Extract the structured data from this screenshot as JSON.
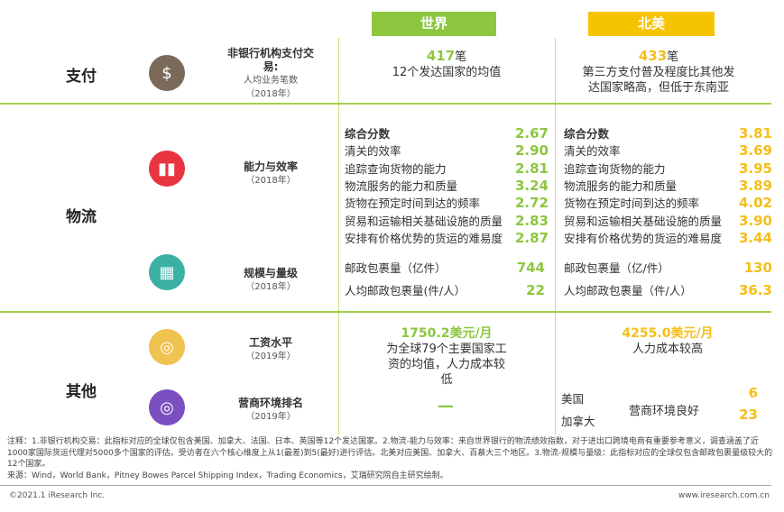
{
  "headers": {
    "world": "世界",
    "north_america": "北美"
  },
  "colors": {
    "world": "#8dc63f",
    "north_america": "#f5be1a",
    "line": "#a6cf4a"
  },
  "payment": {
    "category": "支付",
    "icon": "money-bag-icon",
    "title": "非银行机构支付交易:",
    "subtitle": "人均业务笔数",
    "year": "（2018年）",
    "world": {
      "value": "417",
      "unit": "笔",
      "desc": "12个发达国家的均值"
    },
    "na": {
      "value": "433",
      "unit": "笔",
      "desc": "第三方支付普及程度比其他发达国家略高，但低于东南亚"
    }
  },
  "logistics": {
    "category": "物流",
    "efficiency": {
      "icon": "bar-chart-icon",
      "title": "能力与效率",
      "year": "（2018年）",
      "labels": [
        "综合分数",
        "清关的效率",
        "追踪查询货物的能力",
        "物流服务的能力和质量",
        "货物在预定时间到达的频率",
        "贸易和运输相关基础设施的质量",
        "安排有价格优势的货运的难易度"
      ],
      "world": [
        "2.67",
        "2.90",
        "2.81",
        "3.24",
        "2.72",
        "2.83",
        "2.87"
      ],
      "na": [
        "3.81",
        "3.69",
        "3.95",
        "3.89",
        "4.02",
        "3.90",
        "3.44"
      ]
    },
    "scale": {
      "icon": "grid-icon",
      "title": "规模与量级",
      "year": "（2018年）",
      "world_labels": [
        "邮政包裹量（亿件）",
        "人均邮政包裹量(件/人）"
      ],
      "world": [
        "744",
        "22"
      ],
      "na_labels": [
        "邮政包裹量（亿/件）",
        "人均邮政包裹量（件/人）"
      ],
      "na": [
        "130",
        "36.3"
      ]
    }
  },
  "other": {
    "category": "其他",
    "wage": {
      "icon": "rings-icon",
      "title": "工资水平",
      "year": "（2019年）",
      "world": {
        "value": "1750.2美元/月",
        "desc": "为全球79个主要国家工资的均值，人力成本较低"
      },
      "na": {
        "value": "4255.0美元/月",
        "desc": "人力成本较高"
      }
    },
    "business": {
      "icon": "target-icon",
      "title": "营商环境排名",
      "year": "（2019年）",
      "world": "—",
      "na": {
        "countries": [
          "美国",
          "加拿大"
        ],
        "ranks": [
          "6",
          "23"
        ],
        "desc": "营商环境良好"
      }
    }
  },
  "note": "注释：1.非银行机构交易：此指标对应的全球仅包含美国、加拿大、法国、日本、英国等12个发达国家。2.物流-能力与效率：来自世界银行的物流绩效指数，对于进出口跨境电商有重要参考意义，调查涵盖了近1000家国际货运代理对5000多个国家的评估。受访者在六个核心维度上从1(最差)到5(最好)进行评估。北美对应美国、加拿大、百慕大三个地区。3.物流-规模与量级：此指标对应的全球仅包含邮政包裹量级较大的12个国家。",
  "source": "来源：Wind，World Bank，Pitney Bowes Parcel Shipping Index，Trading Economics，艾瑞研究院自主研究绘制。",
  "footer": {
    "copyright": "©2021.1 iResearch Inc.",
    "url": "www.iresearch.com.cn"
  }
}
